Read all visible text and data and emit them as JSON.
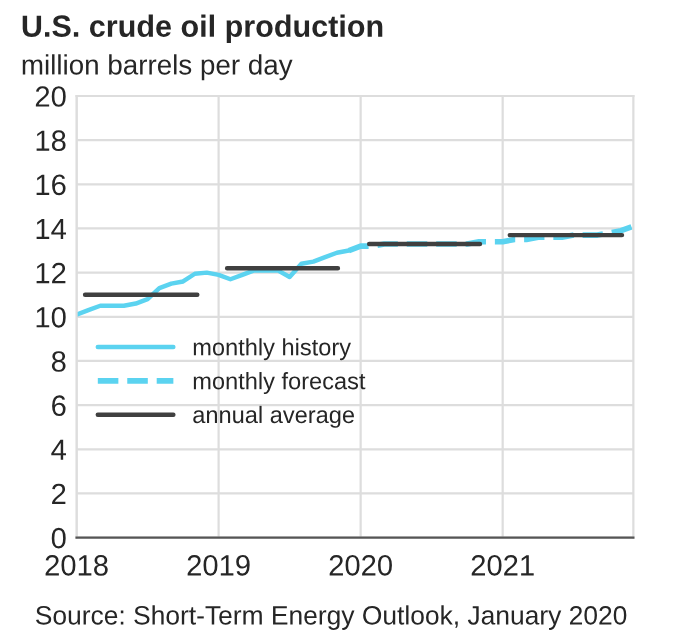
{
  "chart_data": {
    "type": "line",
    "title": "U.S. crude oil production",
    "subtitle": "million barrels per day",
    "annotations": [
      "Source: Short-Term Energy Outlook, January 2020"
    ],
    "xlim": [
      2018,
      2021.92
    ],
    "xticks": [
      2018,
      2019,
      2020,
      2021
    ],
    "ylim": [
      0,
      20
    ],
    "yticks": [
      0,
      2,
      4,
      6,
      8,
      10,
      12,
      14,
      16,
      18,
      20
    ],
    "grid": true,
    "legend": "left",
    "marker": "none",
    "series": [
      {
        "name": "monthly history",
        "color": "#5bd3f0",
        "line_style": "solid",
        "x": [
          2018.0,
          2018.083,
          2018.167,
          2018.25,
          2018.333,
          2018.417,
          2018.5,
          2018.583,
          2018.667,
          2018.75,
          2018.833,
          2018.917,
          2019.0,
          2019.083,
          2019.167,
          2019.25,
          2019.333,
          2019.417,
          2019.5,
          2019.583,
          2019.667,
          2019.75,
          2019.833,
          2019.917
        ],
        "values": [
          10.1,
          10.3,
          10.5,
          10.5,
          10.5,
          10.6,
          10.8,
          11.3,
          11.5,
          11.6,
          11.95,
          12.0,
          11.9,
          11.7,
          11.9,
          12.1,
          12.1,
          12.1,
          11.8,
          12.4,
          12.5,
          12.7,
          12.9,
          13.0
        ]
      },
      {
        "name": "monthly forecast",
        "color": "#5bd3f0",
        "line_style": "dashed",
        "x": [
          2019.917,
          2020.0,
          2020.083,
          2020.167,
          2020.25,
          2020.333,
          2020.417,
          2020.5,
          2020.583,
          2020.667,
          2020.75,
          2020.833,
          2020.917,
          2021.0,
          2021.083,
          2021.167,
          2021.25,
          2021.333,
          2021.417,
          2021.5,
          2021.583,
          2021.667,
          2021.75,
          2021.833,
          2021.917
        ],
        "values": [
          13.0,
          13.2,
          13.2,
          13.3,
          13.3,
          13.3,
          13.3,
          13.3,
          13.3,
          13.3,
          13.3,
          13.4,
          13.4,
          13.4,
          13.5,
          13.5,
          13.6,
          13.6,
          13.6,
          13.7,
          13.7,
          13.7,
          13.8,
          13.9,
          14.1
        ]
      },
      {
        "name": "annual average",
        "color": "#404040",
        "line_style": "solid",
        "x": [
          2018.06,
          2018.85,
          2018.95,
          2019.06,
          2019.84,
          2019.95,
          2020.06,
          2020.84,
          2020.95,
          2021.05,
          2021.84
        ],
        "values": [
          11.0,
          11.0,
          null,
          12.2,
          12.2,
          null,
          13.3,
          13.3,
          null,
          13.7,
          13.7
        ]
      }
    ]
  }
}
